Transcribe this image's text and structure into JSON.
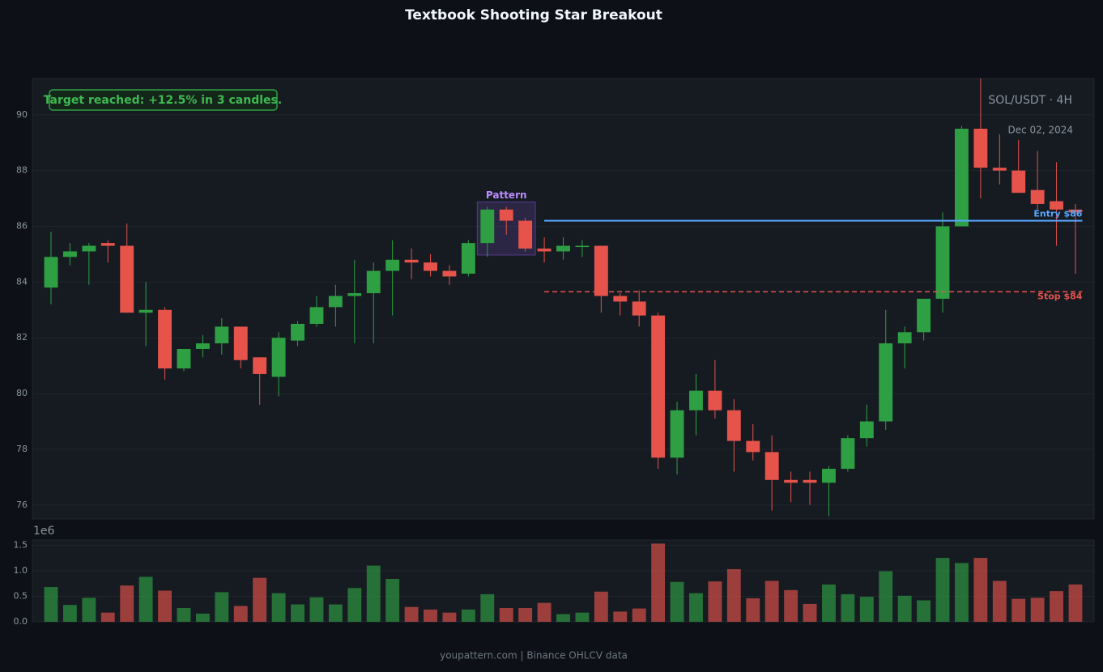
{
  "chart_data": {
    "type": "candlestick",
    "title": "Textbook Shooting Star Breakout",
    "symbol": "SOL/USDT · 4H",
    "date": "Dec 02, 2024",
    "annotation": "Target reached: +12.5% in 3 candles.",
    "footer": "youpattern.com | Binance OHLCV data",
    "open": [
      83.8,
      84.9,
      85.1,
      85.4,
      85.3,
      82.9,
      83.0,
      80.9,
      81.6,
      81.8,
      82.4,
      81.3,
      80.6,
      81.9,
      82.5,
      83.1,
      83.5,
      83.6,
      84.4,
      84.8,
      84.7,
      84.4,
      84.3,
      85.4,
      86.6,
      86.2,
      85.2,
      85.1,
      85.3,
      85.3,
      83.5,
      83.3,
      82.8,
      77.7,
      79.4,
      80.1,
      79.4,
      78.3,
      77.9,
      76.9,
      76.9,
      76.8,
      77.3,
      78.4,
      79.0,
      81.8,
      82.2,
      83.4,
      86.0,
      89.5,
      88.1,
      88.0,
      87.3,
      86.9,
      86.6
    ],
    "high": [
      85.8,
      85.4,
      85.4,
      85.5,
      86.1,
      84.0,
      83.1,
      81.6,
      82.1,
      82.7,
      82.4,
      81.3,
      82.2,
      82.6,
      83.5,
      83.9,
      84.8,
      84.7,
      85.5,
      85.2,
      85.0,
      84.6,
      85.5,
      86.7,
      86.7,
      86.3,
      85.6,
      85.6,
      85.5,
      85.3,
      83.6,
      83.7,
      82.9,
      79.7,
      80.7,
      81.2,
      79.8,
      78.9,
      78.5,
      77.2,
      77.2,
      77.4,
      78.5,
      79.6,
      83.0,
      82.4,
      83.4,
      86.5,
      89.6,
      91.3,
      89.3,
      89.1,
      88.7,
      88.3,
      86.8
    ],
    "low": [
      83.2,
      84.6,
      83.9,
      84.7,
      82.9,
      81.7,
      80.5,
      80.8,
      81.3,
      81.4,
      80.9,
      79.6,
      79.9,
      81.7,
      82.4,
      82.4,
      81.8,
      81.8,
      82.8,
      84.1,
      84.2,
      83.9,
      84.2,
      84.9,
      85.7,
      85.1,
      84.7,
      84.8,
      84.9,
      82.9,
      82.8,
      82.4,
      77.3,
      77.1,
      78.5,
      79.1,
      77.2,
      77.6,
      75.8,
      76.1,
      76.0,
      75.6,
      77.2,
      78.1,
      78.7,
      80.9,
      81.9,
      82.9,
      86.0,
      87.0,
      87.5,
      87.2,
      86.6,
      85.3,
      84.3
    ],
    "close": [
      84.9,
      85.1,
      85.3,
      85.3,
      82.9,
      83.0,
      80.9,
      81.6,
      81.8,
      82.4,
      81.2,
      80.7,
      82.0,
      82.5,
      83.1,
      83.5,
      83.6,
      84.4,
      84.8,
      84.7,
      84.4,
      84.2,
      85.4,
      86.6,
      86.2,
      85.2,
      85.1,
      85.3,
      85.3,
      83.5,
      83.3,
      82.8,
      77.7,
      79.4,
      80.1,
      79.4,
      78.3,
      77.9,
      76.9,
      76.8,
      76.8,
      77.3,
      78.4,
      79.0,
      81.8,
      82.2,
      83.4,
      86.0,
      89.5,
      88.1,
      88.0,
      87.2,
      86.8,
      86.6,
      86.5
    ],
    "volume": [
      0.68,
      0.33,
      0.47,
      0.18,
      0.71,
      0.88,
      0.61,
      0.27,
      0.16,
      0.58,
      0.31,
      0.86,
      0.56,
      0.34,
      0.48,
      0.34,
      0.66,
      1.1,
      0.84,
      0.29,
      0.24,
      0.18,
      0.24,
      0.54,
      0.27,
      0.27,
      0.37,
      0.15,
      0.18,
      0.59,
      0.2,
      0.26,
      1.53,
      0.78,
      0.56,
      0.79,
      1.03,
      0.46,
      0.8,
      0.62,
      0.35,
      0.73,
      0.54,
      0.49,
      0.99,
      0.51,
      0.42,
      1.25,
      1.15,
      1.25,
      0.8,
      0.45,
      0.47,
      0.6,
      0.73
    ],
    "up_color": "#2ea043",
    "down_color": "#e5534b",
    "ylim": [
      75.5,
      91.3
    ],
    "yticks": [
      76,
      78,
      80,
      82,
      84,
      86,
      88,
      90
    ],
    "volume_ylim": [
      0,
      1.6
    ],
    "volume_yticks": [
      {
        "value": 0,
        "label": "0.0"
      },
      0.5,
      {
        "value": 1,
        "label": "1.0"
      },
      1.5
    ],
    "volume_offset": "1e6",
    "pattern": {
      "label": "Pattern",
      "candles": [
        23,
        25
      ]
    },
    "entry": {
      "label": "Entry $86",
      "value": 86.2,
      "color": "#58a6ff"
    },
    "stop": {
      "label": "Stop $84",
      "value": 83.65,
      "color": "#e5534b"
    },
    "grid": true
  }
}
